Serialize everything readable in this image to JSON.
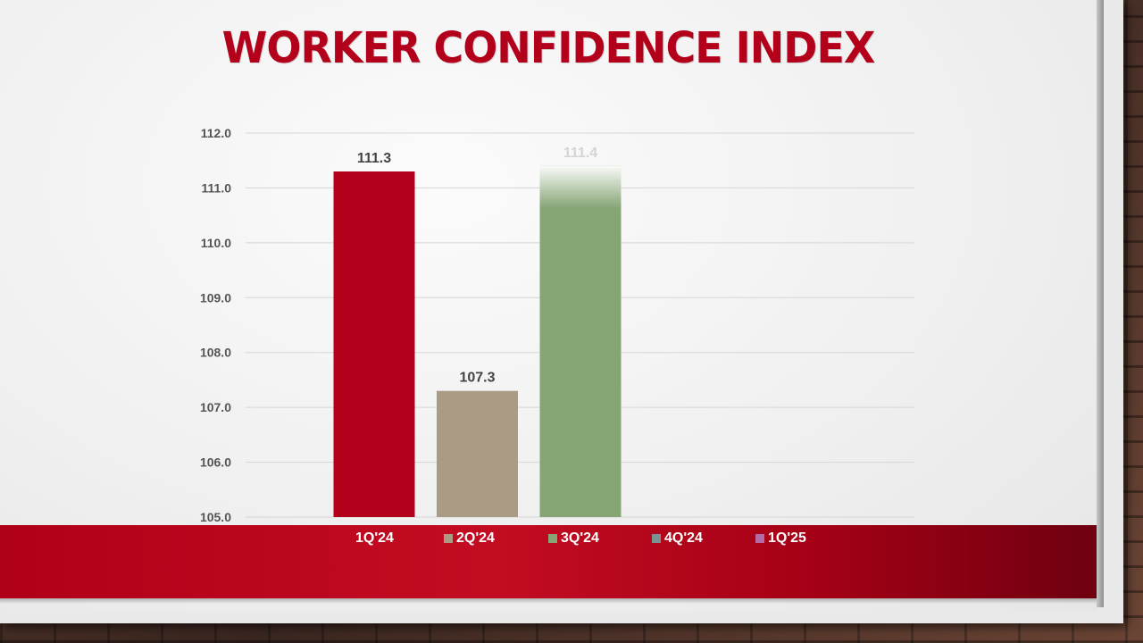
{
  "title": "WORKER CONFIDENCE INDEX",
  "colors": {
    "brand_red": "#b3001b",
    "band_red": "#b00018"
  },
  "chart_data": {
    "type": "bar",
    "title": "WORKER CONFIDENCE INDEX",
    "xlabel": "",
    "ylabel": "",
    "ylim": [
      105.0,
      112.0
    ],
    "yticks": [
      "105.0",
      "106.0",
      "107.0",
      "108.0",
      "109.0",
      "110.0",
      "111.0",
      "112.0"
    ],
    "grid": true,
    "legend_position": "bottom",
    "categories": [
      "1Q'24",
      "2Q'24",
      "3Q'24",
      "4Q'24",
      "1Q'25"
    ],
    "values": [
      111.3,
      107.3,
      111.4,
      null,
      null
    ],
    "data_labels": [
      "111.3",
      "107.3",
      "111.4",
      "",
      ""
    ],
    "colors": [
      "#b3001b",
      "#a99b84",
      "#86a575",
      "#7d9391",
      "#b36aa6"
    ]
  }
}
